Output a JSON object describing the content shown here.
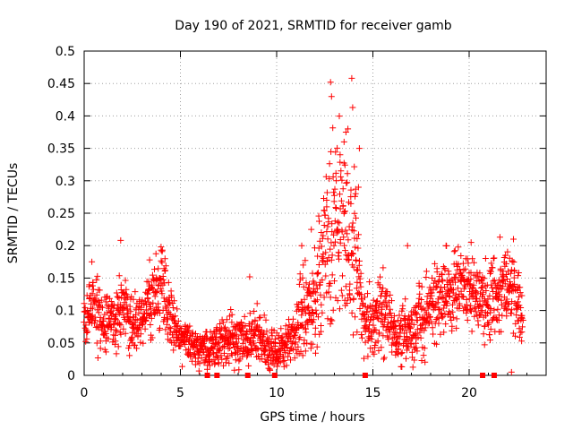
{
  "chart_data": {
    "type": "scatter",
    "title": "Day 190 of 2021, SRMTID for receiver gamb",
    "xlabel": "GPS time / hours",
    "ylabel": "SRMTID / TECUs",
    "xlim": [
      0,
      24
    ],
    "ylim": [
      0,
      0.5
    ],
    "grid": true,
    "marker": "plus",
    "marker_color": "#ff0000",
    "x_ticks": [
      0,
      5,
      10,
      15,
      20
    ],
    "x_tick_labels": [
      "0",
      "5",
      "10",
      "15",
      "20"
    ],
    "y_ticks": [
      0,
      0.05,
      0.1,
      0.15,
      0.2,
      0.25,
      0.3,
      0.35,
      0.4,
      0.45,
      0.5
    ],
    "y_tick_labels": [
      "0",
      "0.05",
      "0.1",
      "0.15",
      "0.2",
      "0.25",
      "0.3",
      "0.35",
      "0.4",
      "0.45",
      "0.5"
    ],
    "envelope": {
      "x": [
        0,
        0.25,
        0.5,
        1.0,
        1.5,
        2.0,
        2.5,
        3.0,
        3.5,
        4.0,
        4.5,
        5.0,
        5.5,
        6.0,
        6.5,
        7.0,
        7.5,
        8.0,
        8.5,
        9.0,
        9.5,
        10.0,
        10.5,
        11.0,
        11.5,
        12.0,
        12.5,
        13.0,
        13.5,
        14.0,
        14.5,
        15.0,
        15.5,
        16.0,
        16.5,
        17.0,
        17.5,
        18.0,
        18.5,
        19.0,
        19.5,
        20.0,
        20.5,
        21.0,
        21.5,
        22.0,
        22.5,
        22.8
      ],
      "typical": [
        0.075,
        0.09,
        0.1,
        0.08,
        0.085,
        0.1,
        0.075,
        0.085,
        0.11,
        0.13,
        0.09,
        0.06,
        0.045,
        0.04,
        0.04,
        0.05,
        0.055,
        0.06,
        0.05,
        0.06,
        0.045,
        0.035,
        0.05,
        0.07,
        0.1,
        0.12,
        0.17,
        0.22,
        0.22,
        0.2,
        0.09,
        0.08,
        0.1,
        0.075,
        0.06,
        0.07,
        0.085,
        0.1,
        0.12,
        0.13,
        0.14,
        0.13,
        0.12,
        0.11,
        0.12,
        0.14,
        0.12,
        0.1
      ],
      "spread": [
        0.025,
        0.04,
        0.05,
        0.03,
        0.03,
        0.04,
        0.03,
        0.03,
        0.04,
        0.05,
        0.035,
        0.025,
        0.02,
        0.02,
        0.02,
        0.025,
        0.025,
        0.03,
        0.025,
        0.03,
        0.025,
        0.02,
        0.025,
        0.035,
        0.05,
        0.06,
        0.09,
        0.11,
        0.1,
        0.09,
        0.04,
        0.035,
        0.04,
        0.03,
        0.03,
        0.035,
        0.04,
        0.04,
        0.04,
        0.04,
        0.04,
        0.04,
        0.04,
        0.04,
        0.05,
        0.05,
        0.04,
        0.03
      ]
    },
    "highlights": [
      {
        "x": 0.4,
        "y": 0.175
      },
      {
        "x": 1.9,
        "y": 0.208
      },
      {
        "x": 3.4,
        "y": 0.178
      },
      {
        "x": 4.0,
        "y": 0.193
      },
      {
        "x": 4.2,
        "y": 0.18
      },
      {
        "x": 8.6,
        "y": 0.152
      },
      {
        "x": 11.3,
        "y": 0.2
      },
      {
        "x": 11.8,
        "y": 0.225
      },
      {
        "x": 12.6,
        "y": 0.27
      },
      {
        "x": 12.8,
        "y": 0.452
      },
      {
        "x": 12.85,
        "y": 0.43
      },
      {
        "x": 13.1,
        "y": 0.3
      },
      {
        "x": 13.3,
        "y": 0.34
      },
      {
        "x": 13.5,
        "y": 0.36
      },
      {
        "x": 13.6,
        "y": 0.375
      },
      {
        "x": 13.7,
        "y": 0.38
      },
      {
        "x": 13.9,
        "y": 0.458
      },
      {
        "x": 13.95,
        "y": 0.413
      },
      {
        "x": 14.1,
        "y": 0.28
      },
      {
        "x": 14.25,
        "y": 0.29
      },
      {
        "x": 14.3,
        "y": 0.35
      },
      {
        "x": 16.8,
        "y": 0.2
      },
      {
        "x": 18.8,
        "y": 0.2
      },
      {
        "x": 20.1,
        "y": 0.205
      },
      {
        "x": 21.6,
        "y": 0.213
      },
      {
        "x": 22.3,
        "y": 0.21
      },
      {
        "x": 22.2,
        "y": 0.005
      }
    ],
    "axis_markers": {
      "y": 0,
      "x": [
        6.4,
        6.9,
        8.5,
        9.9,
        14.6,
        20.7,
        21.3
      ]
    }
  }
}
